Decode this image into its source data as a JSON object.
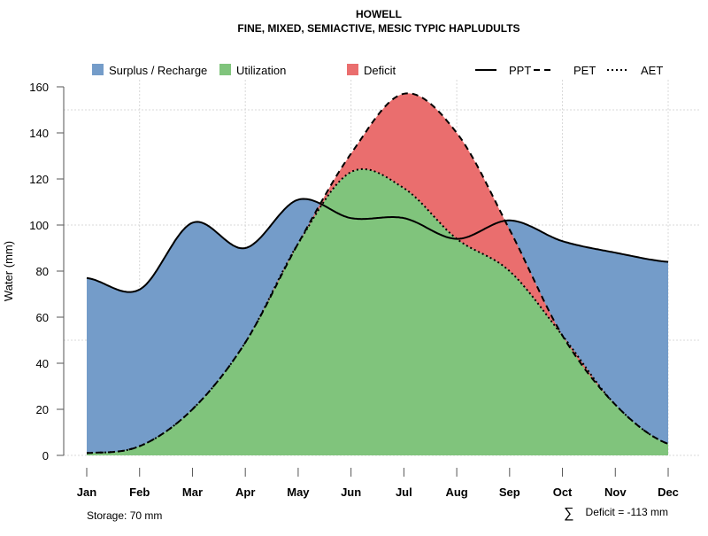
{
  "chart_data": {
    "type": "area",
    "title": "HOWELL",
    "subtitle": "FINE, MIXED, SEMIACTIVE, MESIC TYPIC HAPLUDULTS",
    "xlabel": "",
    "ylabel": "Water (mm)",
    "ylim": [
      0,
      160
    ],
    "yticks": [
      0,
      20,
      40,
      60,
      80,
      100,
      120,
      140,
      160
    ],
    "grid": true,
    "legend_position": "top",
    "categories": [
      "Jan",
      "Feb",
      "Mar",
      "Apr",
      "May",
      "Jun",
      "Jul",
      "Aug",
      "Sep",
      "Oct",
      "Nov",
      "Dec"
    ],
    "series": [
      {
        "name": "PPT",
        "style": "solid",
        "values": [
          77,
          72,
          101,
          90,
          111,
          103,
          103,
          94,
          102,
          93,
          88,
          84
        ]
      },
      {
        "name": "PET",
        "style": "dashed",
        "values": [
          1,
          4,
          20,
          49,
          92,
          131,
          157,
          140,
          98,
          52,
          22,
          5
        ]
      },
      {
        "name": "AET",
        "style": "dotted",
        "values": [
          1,
          4,
          20,
          49,
          92,
          123,
          116,
          94,
          80,
          52,
          22,
          5
        ]
      }
    ],
    "areas": [
      {
        "name": "Surplus / Recharge",
        "color": "#749CC9"
      },
      {
        "name": "Utilization",
        "color": "#80C47C"
      },
      {
        "name": "Deficit",
        "color": "#EA6E6E"
      }
    ],
    "annotations": {
      "storage": "Storage: 70 mm",
      "deficit_symbol": "∑",
      "deficit": "Deficit = -113 mm"
    }
  }
}
